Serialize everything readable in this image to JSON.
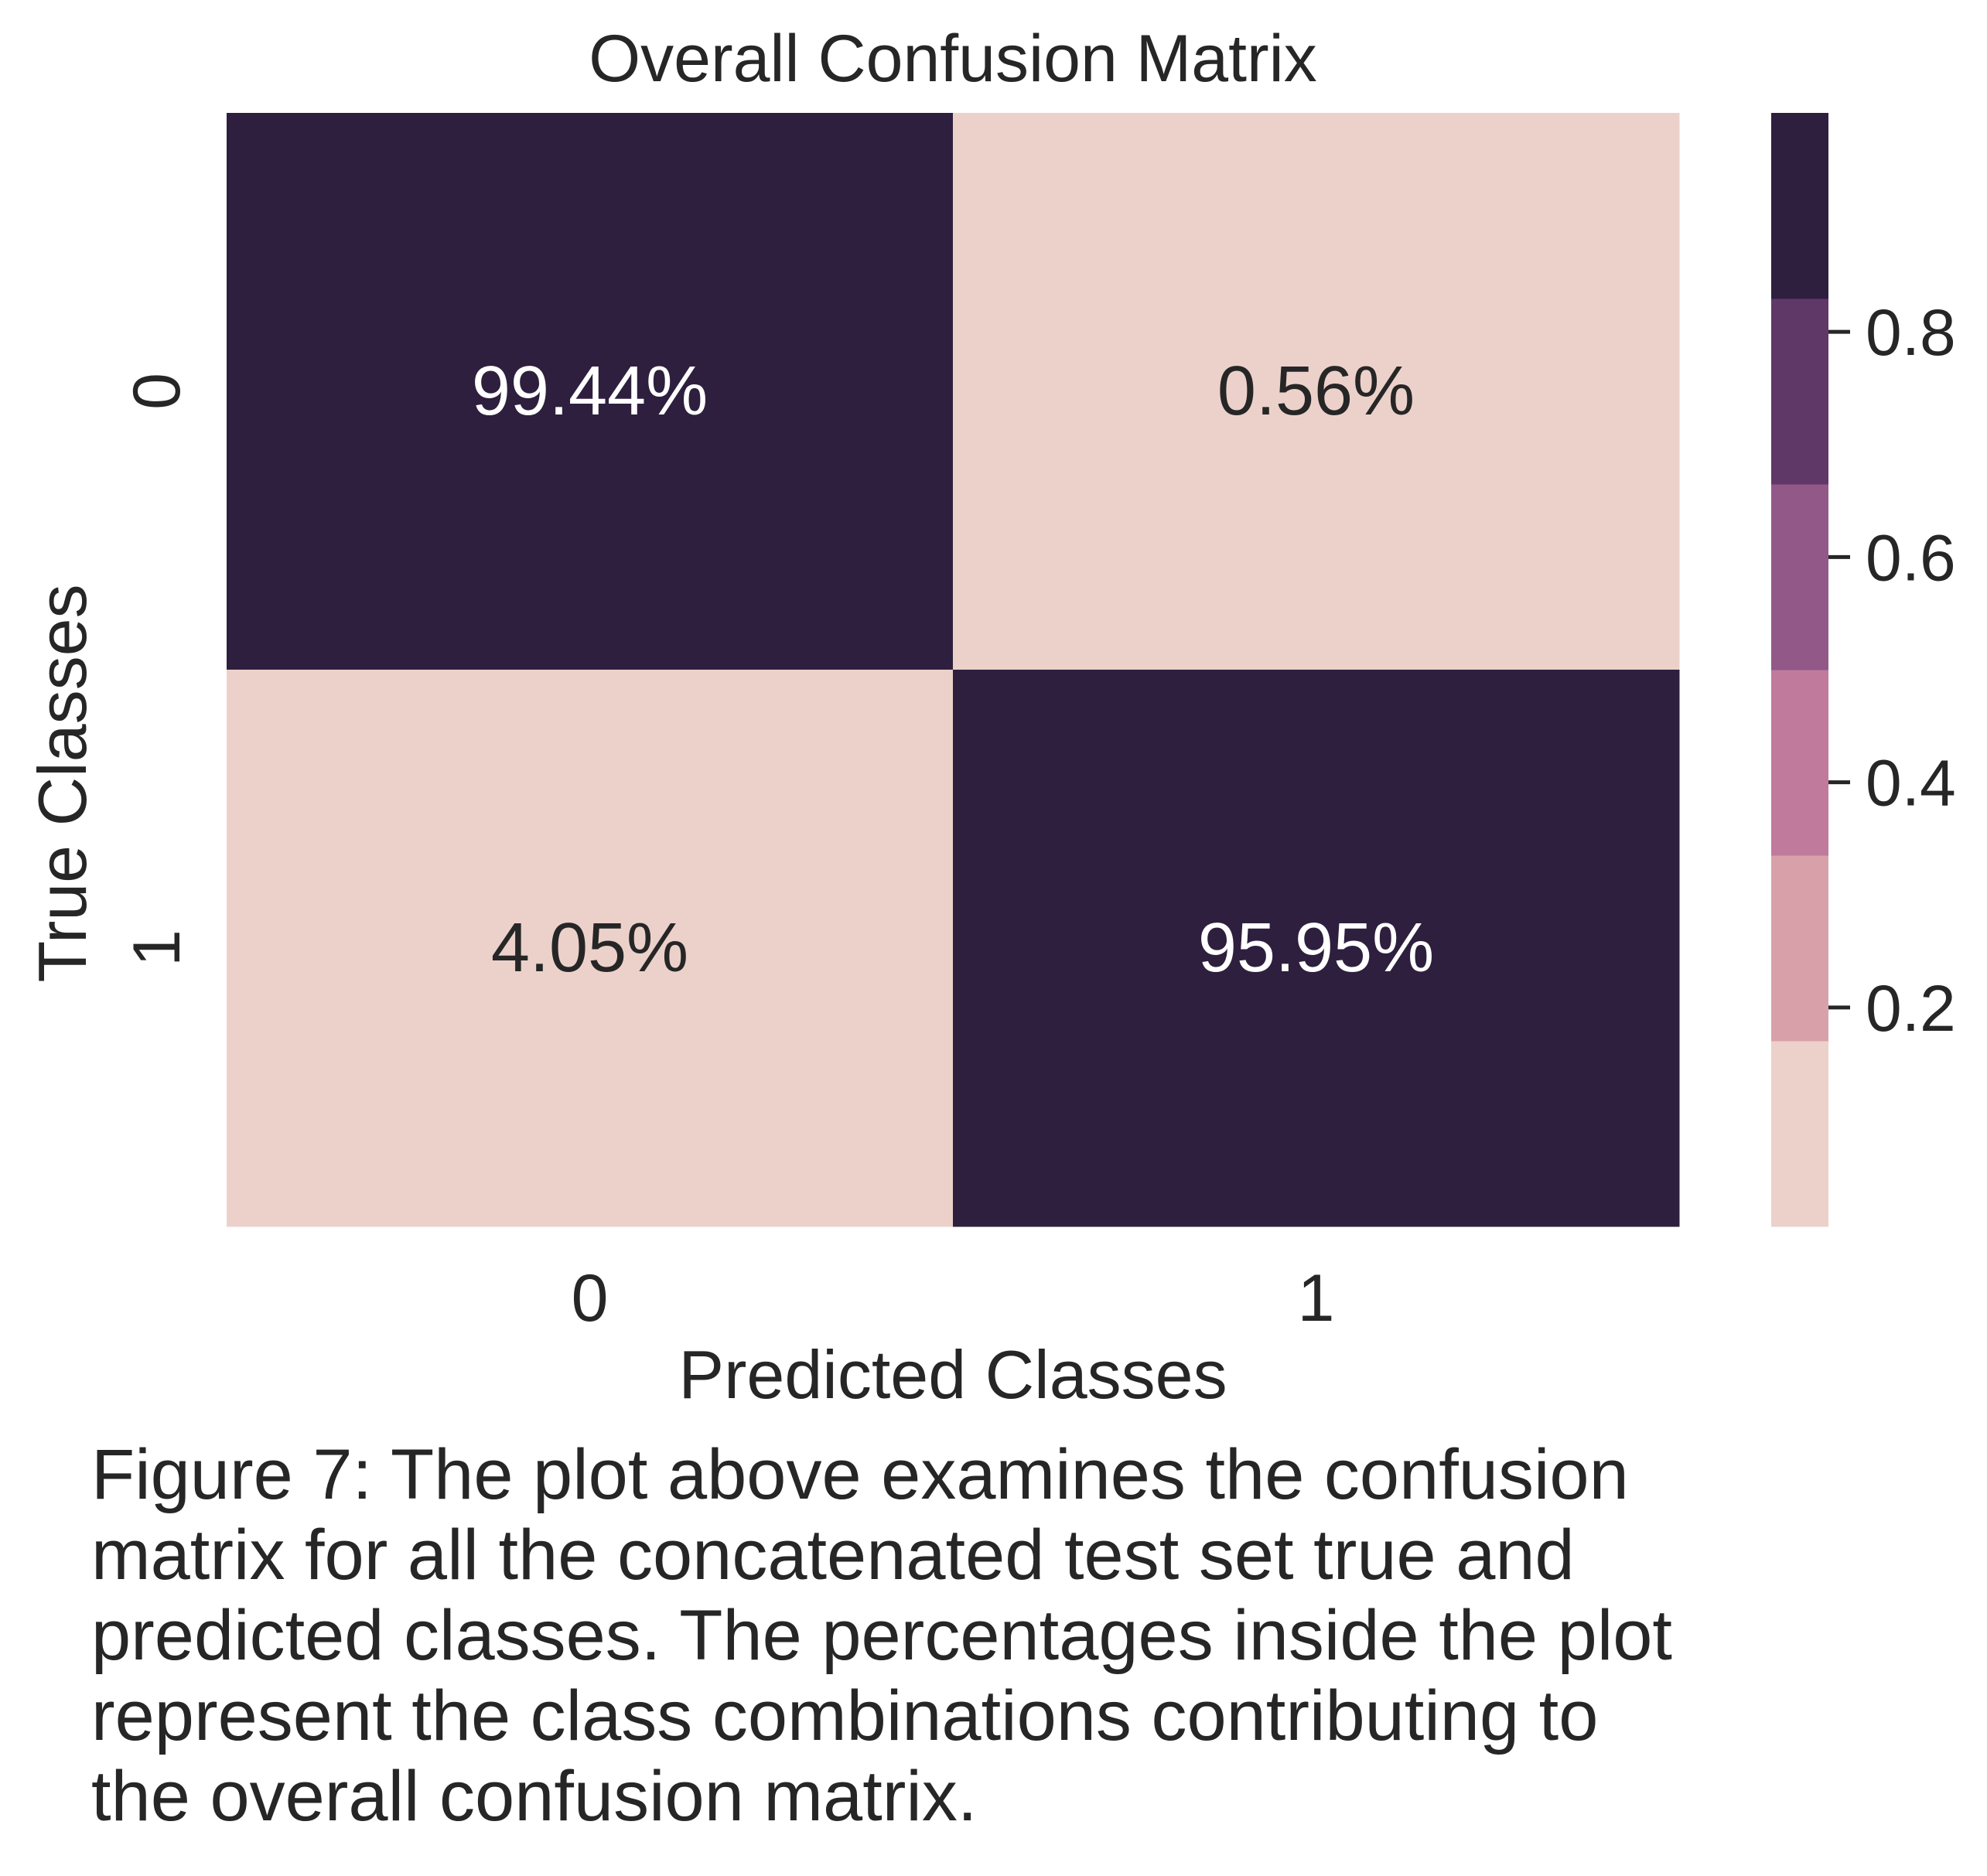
{
  "chart_data": {
    "type": "heatmap",
    "title": "Overall Confusion Matrix",
    "xlabel": "Predicted Classes",
    "ylabel": "True Classes",
    "x_categories": [
      "0",
      "1"
    ],
    "y_categories": [
      "0",
      "1"
    ],
    "values": [
      [
        0.9944,
        0.0056
      ],
      [
        0.0405,
        0.9595
      ]
    ],
    "annotations": [
      [
        "99.44%",
        "0.56%"
      ],
      [
        "4.05%",
        "95.95%"
      ]
    ],
    "colorbar": {
      "ticks": [
        0.2,
        0.4,
        0.6,
        0.8
      ],
      "tick_labels": [
        "0.2",
        "0.4",
        "0.6",
        "0.8"
      ],
      "range": [
        0.0056,
        0.9944
      ],
      "levels": [
        "#ecd1cb",
        "#d8a1aa",
        "#bf7a9c",
        "#925888",
        "#5f3868",
        "#2e1f3e"
      ]
    },
    "grid": false
  },
  "caption": {
    "lines": [
      "Figure 7: The plot above examines the confusion",
      "matrix for all the concatenated test set true and",
      "predicted classes. The percentages inside the plot",
      "represent the class combinations contributing to",
      "the overall confusion matrix."
    ]
  }
}
